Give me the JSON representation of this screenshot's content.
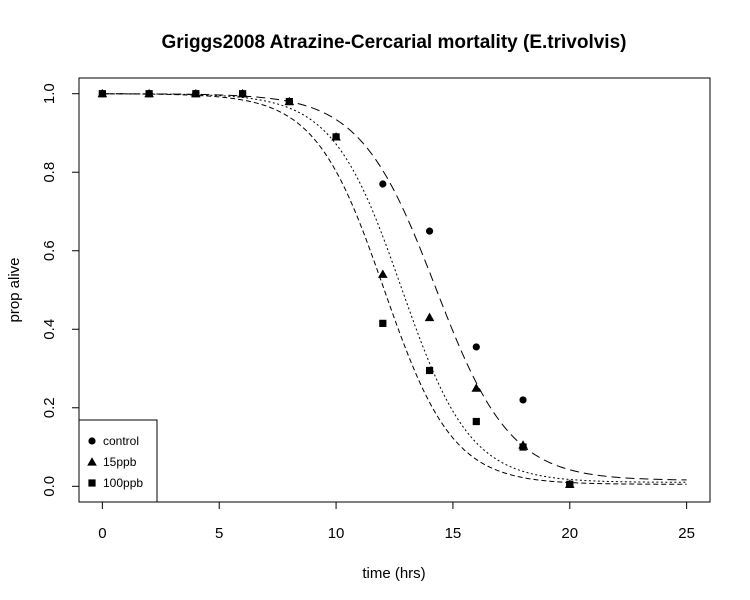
{
  "chart_data": {
    "type": "scatter",
    "title": "Griggs2008 Atrazine-Cercarial mortality (E.trivolvis)",
    "xlabel": "time (hrs)",
    "ylabel": "prop alive",
    "xlim": [
      -1,
      26
    ],
    "ylim": [
      -0.04,
      1.04
    ],
    "xticks": [
      0,
      5,
      10,
      15,
      20,
      25
    ],
    "yticks": [
      0.0,
      0.2,
      0.4,
      0.6,
      0.8,
      1.0
    ],
    "ytick_labels": [
      "0.0",
      "0.2",
      "0.4",
      "0.6",
      "0.8",
      "1.0"
    ],
    "grid": false,
    "legend_position": "bottom-left",
    "series": [
      {
        "name": "control",
        "marker": "circle",
        "x": [
          0,
          2,
          4,
          6,
          8,
          10,
          12,
          14,
          16,
          18,
          20
        ],
        "y": [
          1.0,
          1.0,
          1.0,
          1.0,
          0.98,
          0.89,
          0.77,
          0.65,
          0.355,
          0.22,
          0.005
        ],
        "fit": {
          "model": "logistic",
          "x0": 14.25,
          "k": 0.62,
          "lower": 0.015,
          "upper": 1.0,
          "style": "longdash"
        }
      },
      {
        "name": "15ppb",
        "marker": "triangle",
        "x": [
          0,
          2,
          4,
          6,
          8,
          10,
          12,
          14,
          16,
          18,
          20
        ],
        "y": [
          1.0,
          1.0,
          1.0,
          1.0,
          0.98,
          0.89,
          0.54,
          0.43,
          0.25,
          0.105,
          0.005
        ],
        "fit": {
          "model": "logistic",
          "x0": 12.8,
          "k": 0.68,
          "lower": 0.01,
          "upper": 1.0,
          "style": "dotted"
        }
      },
      {
        "name": "100ppb",
        "marker": "square",
        "x": [
          0,
          2,
          4,
          6,
          8,
          10,
          12,
          14,
          16,
          18,
          20
        ],
        "y": [
          1.0,
          1.0,
          1.0,
          1.0,
          0.98,
          0.89,
          0.415,
          0.295,
          0.165,
          0.1,
          0.005
        ],
        "fit": {
          "model": "logistic",
          "x0": 12.05,
          "k": 0.68,
          "lower": 0.005,
          "upper": 1.0,
          "style": "dashed"
        }
      }
    ]
  }
}
